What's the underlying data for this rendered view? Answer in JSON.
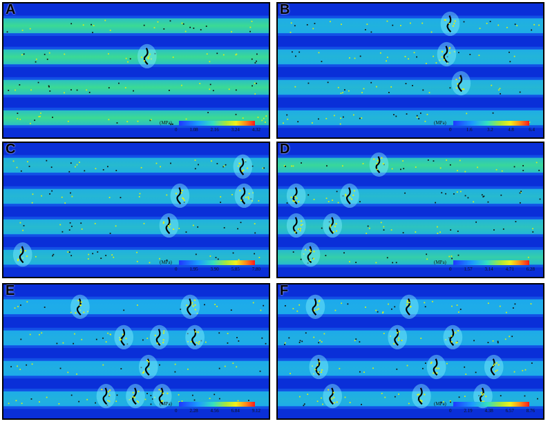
{
  "panels": [
    {
      "label": "A",
      "unit": "(MPa)",
      "ticks": [
        "0",
        "1.08",
        "2.16",
        "3.24",
        "4.32"
      ]
    },
    {
      "label": "B",
      "unit": "(MPa)",
      "ticks": [
        "0",
        "1.6",
        "3.2",
        "4.8",
        "6.4"
      ]
    },
    {
      "label": "C",
      "unit": "(MPa)",
      "ticks": [
        "0",
        "1.95",
        "3.90",
        "5.85",
        "7.80"
      ]
    },
    {
      "label": "D",
      "unit": "(MPa)",
      "ticks": [
        "0",
        "1.57",
        "3.14",
        "4.71",
        "6.28"
      ]
    },
    {
      "label": "E",
      "unit": "(MPa)",
      "ticks": [
        "0",
        "2.28",
        "4.56",
        "6.84",
        "9.12"
      ]
    },
    {
      "label": "F",
      "unit": "(MPa)",
      "ticks": [
        "0",
        "2.19",
        "4.38",
        "6.57",
        "8.76"
      ]
    }
  ],
  "colors": {
    "background": "#0a2fd8",
    "band_low": "#1aa6f2",
    "band_high": "#3fe08a",
    "crack": "#000000",
    "particle": "#d8f020"
  }
}
